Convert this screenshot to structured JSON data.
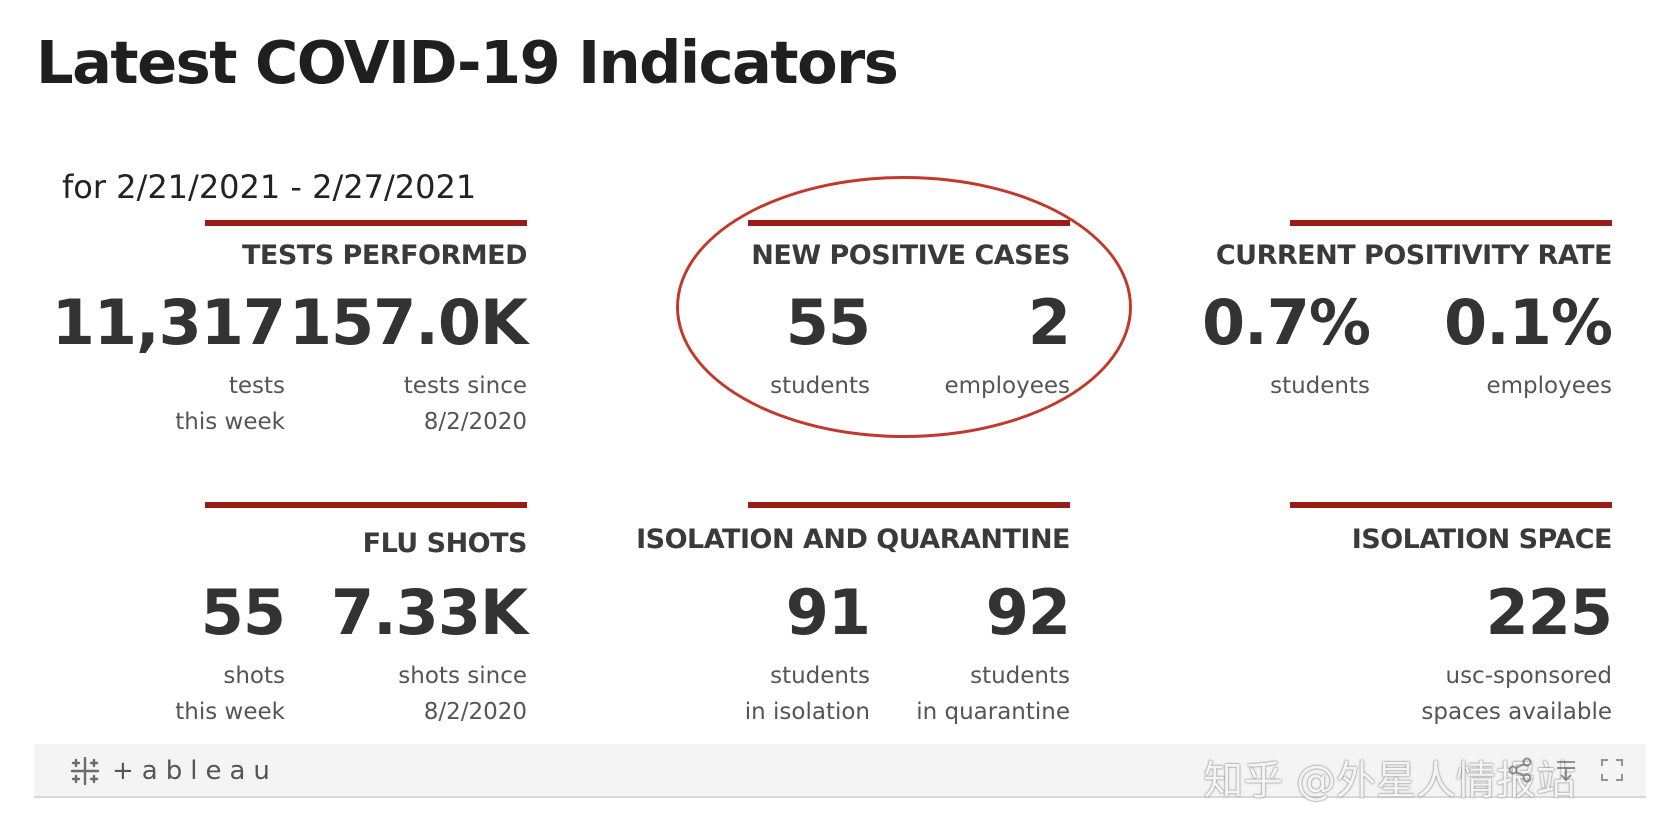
{
  "page": {
    "title": "Latest COVID-19 Indicators",
    "date_range": "for 2/21/2021 - 2/27/2021"
  },
  "cards": {
    "tests": {
      "title": "TESTS PERFORMED",
      "left": {
        "value": "11,317",
        "label_line1": "tests",
        "label_line2": "this week"
      },
      "right": {
        "value": "157.0K",
        "label_line1": "tests since",
        "label_line2": "8/2/2020"
      }
    },
    "positive": {
      "title": "NEW POSITIVE CASES",
      "left": {
        "value": "55",
        "label_line1": "students",
        "label_line2": ""
      },
      "right": {
        "value": "2",
        "label_line1": "employees",
        "label_line2": ""
      }
    },
    "positivity": {
      "title": "CURRENT POSITIVITY RATE",
      "left": {
        "value": "0.7%",
        "label_line1": "students",
        "label_line2": ""
      },
      "right": {
        "value": "0.1%",
        "label_line1": "employees",
        "label_line2": ""
      }
    },
    "flu": {
      "title": "FLU SHOTS",
      "left": {
        "value": "55",
        "label_line1": "shots",
        "label_line2": "this week"
      },
      "right": {
        "value": "7.33K",
        "label_line1": "shots since",
        "label_line2": "8/2/2020"
      }
    },
    "isolation": {
      "title": "ISOLATION AND QUARANTINE",
      "left": {
        "value": "91",
        "label_line1": "students",
        "label_line2": "in isolation"
      },
      "right": {
        "value": "92",
        "label_line1": "students",
        "label_line2": "in quarantine"
      }
    },
    "space": {
      "title": "ISOLATION SPACE",
      "single": {
        "value": "225",
        "label_line1": "usc-sponsored",
        "label_line2": "spaces available"
      }
    }
  },
  "footer": {
    "brand": "+ableau",
    "watermark": "知乎 @外星人情报站",
    "icons": [
      "share-icon",
      "download-icon",
      "fullscreen-icon"
    ]
  },
  "colors": {
    "accent_rule": "#9b1c17",
    "highlight_ellipse": "#c0392b",
    "text_dark": "#333333"
  }
}
